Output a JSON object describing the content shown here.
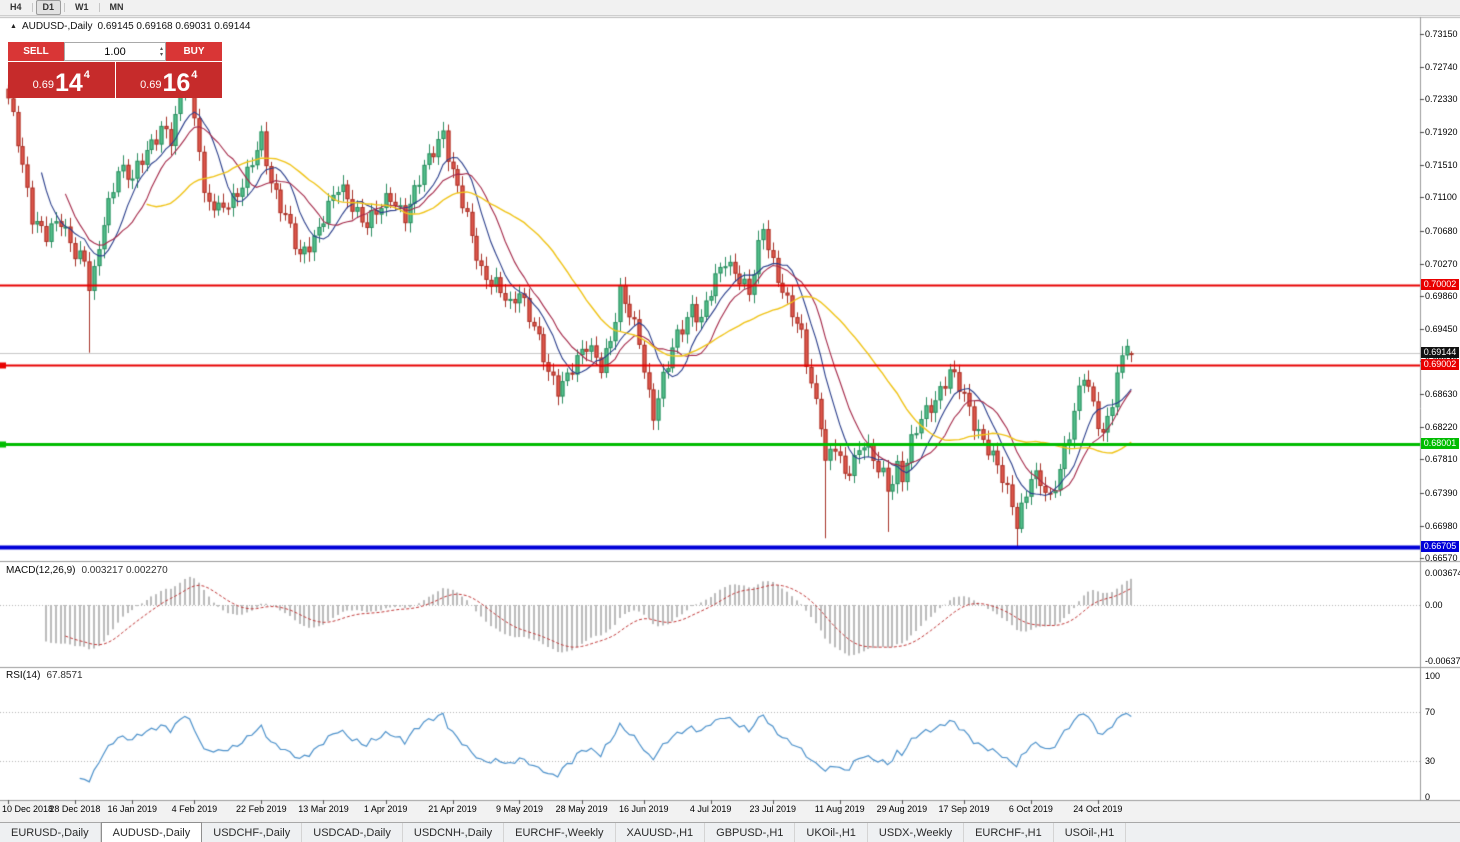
{
  "toolbar": {
    "timeframes": [
      {
        "label": "H4",
        "active": false
      },
      {
        "label": "D1",
        "active": true
      },
      {
        "label": "W1",
        "active": false
      },
      {
        "label": "MN",
        "active": false
      }
    ]
  },
  "chart_header": {
    "collapse_icon": "▲",
    "symbol": "AUDUSD-,Daily",
    "ohlc_text": "0.69145 0.69168 0.69031 0.69144"
  },
  "one_click": {
    "sell_label": "SELL",
    "buy_label": "BUY",
    "volume": "1.00",
    "sell_price": {
      "prefix": "0.69",
      "big": "14",
      "sup": "4"
    },
    "buy_price": {
      "prefix": "0.69",
      "big": "16",
      "sup": "4"
    }
  },
  "price_axis_ticks": [
    "0.73150",
    "0.72740",
    "0.72330",
    "0.71920",
    "0.71510",
    "0.71100",
    "0.70680",
    "0.70270",
    "0.69860",
    "0.69450",
    "0.69040",
    "0.68630",
    "0.68220",
    "0.67810",
    "0.67390",
    "0.66980",
    "0.66570"
  ],
  "hlines": [
    {
      "price": 0.70002,
      "label": "0.70002",
      "color": "#e80000",
      "lw": 2
    },
    {
      "price": 0.69002,
      "label": "0.69002",
      "color": "#e80000",
      "lw": 2
    },
    {
      "price": 0.68001,
      "label": "0.68001",
      "color": "#00bc00",
      "lw": 3
    },
    {
      "price": 0.66705,
      "label": "0.66705",
      "color": "#0000d8",
      "lw": 4
    }
  ],
  "current_price": {
    "value": 0.69144,
    "label": "0.69144"
  },
  "indicators": {
    "macd": {
      "label": "MACD(12,26,9)",
      "values": "0.003217 0.002270",
      "axis_max": "0.003674",
      "axis_zero": "0.00",
      "axis_min": "-0.006378"
    },
    "rsi": {
      "label": "RSI(14)",
      "value": "67.8571",
      "axis": [
        "100",
        "70",
        "30",
        "0"
      ],
      "levels": [
        70,
        30
      ]
    }
  },
  "date_axis": [
    {
      "label": "10 Dec 2018",
      "day": 0
    },
    {
      "label": "28 Dec 2018",
      "day": 14
    },
    {
      "label": "16 Jan 2019",
      "day": 26
    },
    {
      "label": "4 Feb 2019",
      "day": 39
    },
    {
      "label": "22 Feb 2019",
      "day": 53
    },
    {
      "label": "13 Mar 2019",
      "day": 66
    },
    {
      "label": "1 Apr 2019",
      "day": 79
    },
    {
      "label": "21 Apr 2019",
      "day": 93
    },
    {
      "label": "9 May 2019",
      "day": 107
    },
    {
      "label": "28 May 2019",
      "day": 120
    },
    {
      "label": "16 Jun 2019",
      "day": 133
    },
    {
      "label": "4 Jul 2019",
      "day": 147
    },
    {
      "label": "23 Jul 2019",
      "day": 160
    },
    {
      "label": "11 Aug 2019",
      "day": 174
    },
    {
      "label": "29 Aug 2019",
      "day": 187
    },
    {
      "label": "17 Sep 2019",
      "day": 200
    },
    {
      "label": "6 Oct 2019",
      "day": 214
    },
    {
      "label": "24 Oct 2019",
      "day": 228
    }
  ],
  "tabs": [
    {
      "label": "EURUSD-,Daily",
      "active": false
    },
    {
      "label": "AUDUSD-,Daily",
      "active": true
    },
    {
      "label": "USDCHF-,Daily",
      "active": false
    },
    {
      "label": "USDCAD-,Daily",
      "active": false
    },
    {
      "label": "USDCNH-,Daily",
      "active": false
    },
    {
      "label": "EURCHF-,Weekly",
      "active": false
    },
    {
      "label": "XAUUSD-,H1",
      "active": false
    },
    {
      "label": "GBPUSD-,H1",
      "active": false
    },
    {
      "label": "UKOil-,H1",
      "active": false
    },
    {
      "label": "USDX-,Weekly",
      "active": false
    },
    {
      "label": "EURCHF-,H1",
      "active": false
    },
    {
      "label": "USOil-,H1",
      "active": false
    }
  ],
  "colors": {
    "up": "#53c08b",
    "up_border": "#2f8f63",
    "down": "#e2574c",
    "down_border": "#a8352b",
    "ma_fast": "#2b3f8c",
    "ma_mid": "#a52a4a",
    "ma_slow": "#f0c419",
    "macd_hist": "#bcbcbc",
    "macd_signal": "#c23b3b",
    "rsi_line": "#4f93cc",
    "current_line": "#c8c8c8"
  },
  "chart_data": {
    "type": "candlestick",
    "symbol": "AUDUSD",
    "timeframe": "Daily",
    "title": "AUDUSD-,Daily",
    "current_ohlc": {
      "open": 0.69145,
      "high": 0.69168,
      "low": 0.69031,
      "close": 0.69144
    },
    "y_range": [
      0.6656,
      0.7334
    ],
    "candle_count": 236,
    "price_anchors": [
      [
        0,
        0.723
      ],
      [
        2,
        0.718
      ],
      [
        5,
        0.709
      ],
      [
        8,
        0.706
      ],
      [
        11,
        0.708
      ],
      [
        14,
        0.7045
      ],
      [
        16,
        0.703
      ],
      [
        17,
        0.6995
      ],
      [
        18,
        0.701
      ],
      [
        20,
        0.708
      ],
      [
        23,
        0.715
      ],
      [
        26,
        0.713
      ],
      [
        29,
        0.717
      ],
      [
        32,
        0.72
      ],
      [
        34,
        0.718
      ],
      [
        36,
        0.723
      ],
      [
        37,
        0.7265
      ],
      [
        38,
        0.7245
      ],
      [
        40,
        0.718
      ],
      [
        41,
        0.711
      ],
      [
        44,
        0.709
      ],
      [
        47,
        0.711
      ],
      [
        50,
        0.714
      ],
      [
        53,
        0.718
      ],
      [
        55,
        0.713
      ],
      [
        58,
        0.709
      ],
      [
        61,
        0.703
      ],
      [
        64,
        0.706
      ],
      [
        66,
        0.709
      ],
      [
        69,
        0.712
      ],
      [
        72,
        0.71
      ],
      [
        75,
        0.708
      ],
      [
        78,
        0.7095
      ],
      [
        80,
        0.711
      ],
      [
        83,
        0.709
      ],
      [
        86,
        0.713
      ],
      [
        89,
        0.717
      ],
      [
        91,
        0.7195
      ],
      [
        93,
        0.714
      ],
      [
        96,
        0.708
      ],
      [
        99,
        0.702
      ],
      [
        102,
        0.7
      ],
      [
        105,
        0.697
      ],
      [
        107,
        0.6995
      ],
      [
        110,
        0.695
      ],
      [
        113,
        0.6885
      ],
      [
        115,
        0.687
      ],
      [
        118,
        0.69
      ],
      [
        121,
        0.692
      ],
      [
        124,
        0.69
      ],
      [
        126,
        0.6935
      ],
      [
        128,
        0.699
      ],
      [
        130,
        0.696
      ],
      [
        132,
        0.693
      ],
      [
        134,
        0.6865
      ],
      [
        135,
        0.684
      ],
      [
        137,
        0.688
      ],
      [
        140,
        0.6935
      ],
      [
        143,
        0.6975
      ],
      [
        145,
        0.6955
      ],
      [
        147,
        0.699
      ],
      [
        150,
        0.7035
      ],
      [
        153,
        0.701
      ],
      [
        155,
        0.6985
      ],
      [
        157,
        0.7045
      ],
      [
        158,
        0.7075
      ],
      [
        160,
        0.703
      ],
      [
        163,
        0.6975
      ],
      [
        166,
        0.6935
      ],
      [
        168,
        0.688
      ],
      [
        170,
        0.683
      ],
      [
        171,
        0.6775
      ],
      [
        173,
        0.6795
      ],
      [
        175,
        0.676
      ],
      [
        177,
        0.6785
      ],
      [
        179,
        0.6805
      ],
      [
        181,
        0.6775
      ],
      [
        183,
        0.676
      ],
      [
        184,
        0.6745
      ],
      [
        186,
        0.6775
      ],
      [
        187,
        0.676
      ],
      [
        189,
        0.68
      ],
      [
        191,
        0.683
      ],
      [
        194,
        0.686
      ],
      [
        197,
        0.689
      ],
      [
        199,
        0.687
      ],
      [
        200,
        0.6858
      ],
      [
        202,
        0.683
      ],
      [
        205,
        0.6795
      ],
      [
        208,
        0.6755
      ],
      [
        210,
        0.6725
      ],
      [
        211,
        0.6705
      ],
      [
        213,
        0.674
      ],
      [
        214,
        0.676
      ],
      [
        216,
        0.6748
      ],
      [
        218,
        0.673
      ],
      [
        220,
        0.6775
      ],
      [
        222,
        0.6815
      ],
      [
        224,
        0.6862
      ],
      [
        225,
        0.6885
      ],
      [
        227,
        0.685
      ],
      [
        229,
        0.6815
      ],
      [
        231,
        0.6855
      ],
      [
        233,
        0.6905
      ],
      [
        234,
        0.6928
      ],
      [
        235,
        0.69144
      ]
    ],
    "event_wicks": {
      "17": {
        "l": 0.6915
      },
      "171": {
        "l": 0.6682
      },
      "184": {
        "l": 0.669
      },
      "211": {
        "l": 0.667
      },
      "234": {
        "h": 0.6932
      }
    },
    "moving_averages": [
      {
        "period": 8,
        "color_key": "ma_fast"
      },
      {
        "period": 13,
        "color_key": "ma_mid"
      },
      {
        "period": 30,
        "color_key": "ma_slow"
      }
    ]
  }
}
